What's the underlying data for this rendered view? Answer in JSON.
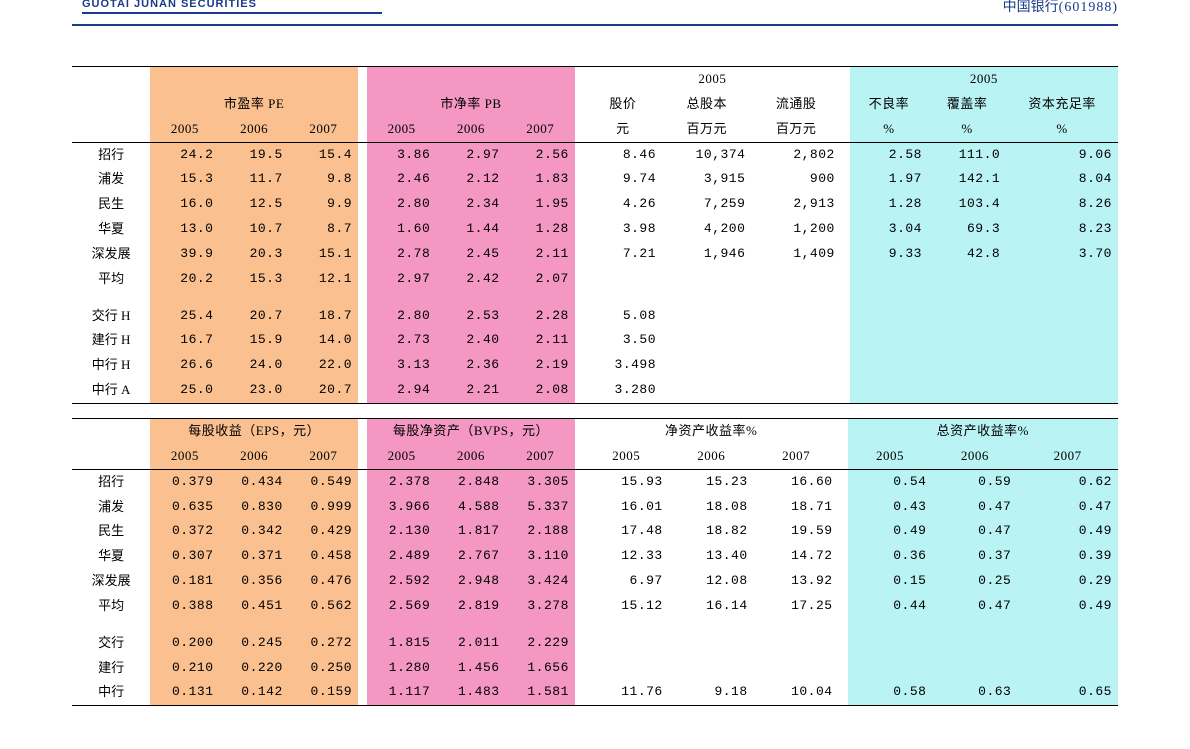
{
  "header": {
    "logo_text": "GUOTAI JUNAN SECURITIES",
    "right_label": "中国银行",
    "right_code": "(601988)"
  },
  "colors": {
    "orange": "#fac090",
    "pink": "#f497c2",
    "cyan": "#b9f3f3",
    "rule": "#000000",
    "brand": "#1a3a8a"
  },
  "table1": {
    "group_headers": {
      "pe": "市盈率 PE",
      "pb": "市净率 PB",
      "price": "股价",
      "shares": "总股本",
      "float": "流通股",
      "npl": "不良率",
      "cover": "覆盖率",
      "car": "资本充足率",
      "year2005a": "2005",
      "year2005b": "2005"
    },
    "sub_headers": {
      "y05": "2005",
      "y06": "2006",
      "y07": "2007",
      "yuan": "元",
      "mln1": "百万元",
      "mln2": "百万元",
      "pct": "%"
    },
    "rows": [
      {
        "label": "招行",
        "pe": [
          "24.2",
          "19.5",
          "15.4"
        ],
        "pb": [
          "3.86",
          "2.97",
          "2.56"
        ],
        "mid": [
          "8.46",
          "10,374",
          "2,802"
        ],
        "right": [
          "2.58",
          "111.0",
          "9.06"
        ]
      },
      {
        "label": "浦发",
        "pe": [
          "15.3",
          "11.7",
          "9.8"
        ],
        "pb": [
          "2.46",
          "2.12",
          "1.83"
        ],
        "mid": [
          "9.74",
          "3,915",
          "900"
        ],
        "right": [
          "1.97",
          "142.1",
          "8.04"
        ]
      },
      {
        "label": "民生",
        "pe": [
          "16.0",
          "12.5",
          "9.9"
        ],
        "pb": [
          "2.80",
          "2.34",
          "1.95"
        ],
        "mid": [
          "4.26",
          "7,259",
          "2,913"
        ],
        "right": [
          "1.28",
          "103.4",
          "8.26"
        ]
      },
      {
        "label": "华夏",
        "pe": [
          "13.0",
          "10.7",
          "8.7"
        ],
        "pb": [
          "1.60",
          "1.44",
          "1.28"
        ],
        "mid": [
          "3.98",
          "4,200",
          "1,200"
        ],
        "right": [
          "3.04",
          "69.3",
          "8.23"
        ]
      },
      {
        "label": "深发展",
        "pe": [
          "39.9",
          "20.3",
          "15.1"
        ],
        "pb": [
          "2.78",
          "2.45",
          "2.11"
        ],
        "mid": [
          "7.21",
          "1,946",
          "1,409"
        ],
        "right": [
          "9.33",
          "42.8",
          "3.70"
        ]
      },
      {
        "label": "平均",
        "pe": [
          "20.2",
          "15.3",
          "12.1"
        ],
        "pb": [
          "2.97",
          "2.42",
          "2.07"
        ],
        "mid": [
          "",
          "",
          ""
        ],
        "right": [
          "",
          "",
          ""
        ]
      }
    ],
    "rows2": [
      {
        "label": "交行 H",
        "pe": [
          "25.4",
          "20.7",
          "18.7"
        ],
        "pb": [
          "2.80",
          "2.53",
          "2.28"
        ],
        "mid": [
          "5.08",
          "",
          ""
        ],
        "right": [
          "",
          "",
          ""
        ]
      },
      {
        "label": "建行 H",
        "pe": [
          "16.7",
          "15.9",
          "14.0"
        ],
        "pb": [
          "2.73",
          "2.40",
          "2.11"
        ],
        "mid": [
          "3.50",
          "",
          ""
        ],
        "right": [
          "",
          "",
          ""
        ]
      },
      {
        "label": "中行 H",
        "pe": [
          "26.6",
          "24.0",
          "22.0"
        ],
        "pb": [
          "3.13",
          "2.36",
          "2.19"
        ],
        "mid": [
          "3.498",
          "",
          ""
        ],
        "right": [
          "",
          "",
          ""
        ]
      },
      {
        "label": "中行 A",
        "pe": [
          "25.0",
          "23.0",
          "20.7"
        ],
        "pb": [
          "2.94",
          "2.21",
          "2.08"
        ],
        "mid": [
          "3.280",
          "",
          ""
        ],
        "right": [
          "",
          "",
          ""
        ]
      }
    ]
  },
  "table2": {
    "group_headers": {
      "eps": "每股收益（EPS，元）",
      "bvps": "每股净资产（BVPS，元）",
      "roe": "净资产收益率%",
      "roa": "总资产收益率%"
    },
    "sub_headers": {
      "y05": "2005",
      "y06": "2006",
      "y07": "2007"
    },
    "rows": [
      {
        "label": "招行",
        "eps": [
          "0.379",
          "0.434",
          "0.549"
        ],
        "bvps": [
          "2.378",
          "2.848",
          "3.305"
        ],
        "roe": [
          "15.93",
          "15.23",
          "16.60"
        ],
        "roa": [
          "0.54",
          "0.59",
          "0.62"
        ]
      },
      {
        "label": "浦发",
        "eps": [
          "0.635",
          "0.830",
          "0.999"
        ],
        "bvps": [
          "3.966",
          "4.588",
          "5.337"
        ],
        "roe": [
          "16.01",
          "18.08",
          "18.71"
        ],
        "roa": [
          "0.43",
          "0.47",
          "0.47"
        ]
      },
      {
        "label": "民生",
        "eps": [
          "0.372",
          "0.342",
          "0.429"
        ],
        "bvps": [
          "2.130",
          "1.817",
          "2.188"
        ],
        "roe": [
          "17.48",
          "18.82",
          "19.59"
        ],
        "roa": [
          "0.49",
          "0.47",
          "0.49"
        ]
      },
      {
        "label": "华夏",
        "eps": [
          "0.307",
          "0.371",
          "0.458"
        ],
        "bvps": [
          "2.489",
          "2.767",
          "3.110"
        ],
        "roe": [
          "12.33",
          "13.40",
          "14.72"
        ],
        "roa": [
          "0.36",
          "0.37",
          "0.39"
        ]
      },
      {
        "label": "深发展",
        "eps": [
          "0.181",
          "0.356",
          "0.476"
        ],
        "bvps": [
          "2.592",
          "2.948",
          "3.424"
        ],
        "roe": [
          "6.97",
          "12.08",
          "13.92"
        ],
        "roa": [
          "0.15",
          "0.25",
          "0.29"
        ]
      },
      {
        "label": "平均",
        "eps": [
          "0.388",
          "0.451",
          "0.562"
        ],
        "bvps": [
          "2.569",
          "2.819",
          "3.278"
        ],
        "roe": [
          "15.12",
          "16.14",
          "17.25"
        ],
        "roa": [
          "0.44",
          "0.47",
          "0.49"
        ]
      }
    ],
    "rows2": [
      {
        "label": "交行",
        "eps": [
          "0.200",
          "0.245",
          "0.272"
        ],
        "bvps": [
          "1.815",
          "2.011",
          "2.229"
        ],
        "roe": [
          "",
          "",
          ""
        ],
        "roa": [
          "",
          "",
          ""
        ]
      },
      {
        "label": "建行",
        "eps": [
          "0.210",
          "0.220",
          "0.250"
        ],
        "bvps": [
          "1.280",
          "1.456",
          "1.656"
        ],
        "roe": [
          "",
          "",
          ""
        ],
        "roa": [
          "",
          "",
          ""
        ]
      },
      {
        "label": "中行",
        "eps": [
          "0.131",
          "0.142",
          "0.159"
        ],
        "bvps": [
          "1.117",
          "1.483",
          "1.581"
        ],
        "roe": [
          "11.76",
          "9.18",
          "10.04"
        ],
        "roa": [
          "0.58",
          "0.63",
          "0.65"
        ]
      }
    ]
  }
}
